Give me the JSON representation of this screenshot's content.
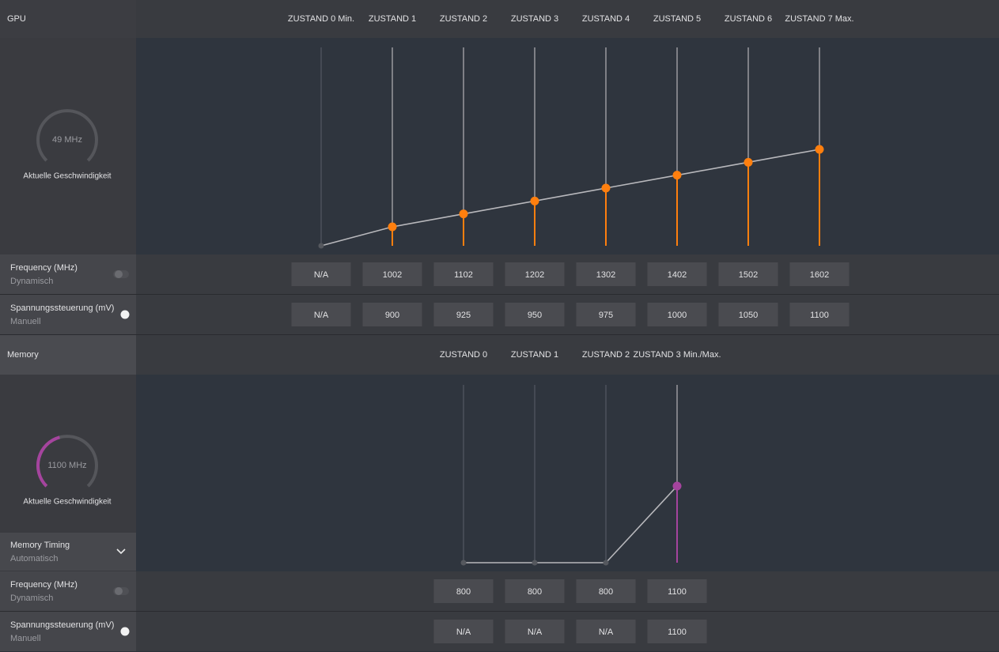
{
  "gpu": {
    "title": "GPU",
    "gauge": {
      "reading": "49 MHz",
      "caption": "Aktuelle Geschwindigkeit"
    },
    "states": [
      "ZUSTAND 0 Min.",
      "ZUSTAND 1",
      "ZUSTAND 2",
      "ZUSTAND 3",
      "ZUSTAND 4",
      "ZUSTAND 5",
      "ZUSTAND 6",
      "ZUSTAND 7 Max."
    ],
    "frequency": {
      "label": "Frequency (MHz)",
      "mode": "Dynamisch",
      "values": [
        "N/A",
        1002,
        1102,
        1202,
        1302,
        1402,
        1502,
        1602
      ]
    },
    "voltage": {
      "label": "Spannungssteuerung (mV)",
      "mode": "Manuell",
      "values": [
        "N/A",
        900,
        925,
        950,
        975,
        1000,
        1050,
        1100
      ]
    }
  },
  "memory": {
    "title": "Memory",
    "gauge": {
      "reading": "1100 MHz",
      "caption": "Aktuelle Geschwindigkeit"
    },
    "states": [
      "ZUSTAND 0",
      "ZUSTAND 1",
      "ZUSTAND 2",
      "ZUSTAND 3 Min./Max."
    ],
    "timing": {
      "label": "Memory Timing",
      "mode": "Automatisch"
    },
    "frequency": {
      "label": "Frequency (MHz)",
      "mode": "Dynamisch",
      "values": [
        800,
        800,
        800,
        1100
      ]
    },
    "voltage": {
      "label": "Spannungssteuerung (mV)",
      "mode": "Manuell",
      "values": [
        "N/A",
        "N/A",
        "N/A",
        1100
      ]
    }
  }
}
